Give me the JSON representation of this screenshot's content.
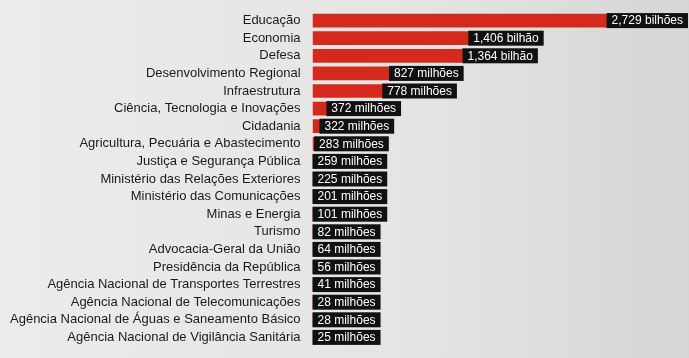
{
  "chart_data": {
    "type": "bar",
    "orientation": "horizontal",
    "categories": [
      "Educação",
      "Economia",
      "Defesa",
      "Desenvolvimento Regional",
      "Infraestrutura",
      "Ciência, Tecnologia e Inovações",
      "Cidadania",
      "Agricultura, Pecuária e Abastecimento",
      "Justiça e Segurança Pública",
      "Ministério das Relações Exteriores",
      "Ministério das Comunicações",
      "Minas e Energia",
      "Turismo",
      "Advocacia-Geral da União",
      "Presidência da República",
      "Agência Nacional de Transportes Terrestres",
      "Agência Nacional de Telecomunicações",
      "Agência Nacional de Águas e Saneamento Básico",
      "Agência Nacional de Vigilância Sanitária"
    ],
    "values": [
      2729,
      1406,
      1364,
      827,
      778,
      372,
      322,
      283,
      259,
      225,
      201,
      101,
      82,
      64,
      56,
      41,
      28,
      28,
      25
    ],
    "value_labels": [
      "2,729 bilhões",
      "1,406 bilhão",
      "1,364 bilhão",
      "827 milhões",
      "778 milhões",
      "372 milhões",
      "322 milhões",
      "283 milhões",
      "259 milhões",
      "225 milhões",
      "201 milhões",
      "101 milhões",
      "82 milhões",
      "64 milhões",
      "56 milhões",
      "41 milhões",
      "28 milhões",
      "28 milhões",
      "25 milhões"
    ],
    "color": "#d42a1e",
    "data_labels": true,
    "tick_labels": "y",
    "grid": false
  }
}
